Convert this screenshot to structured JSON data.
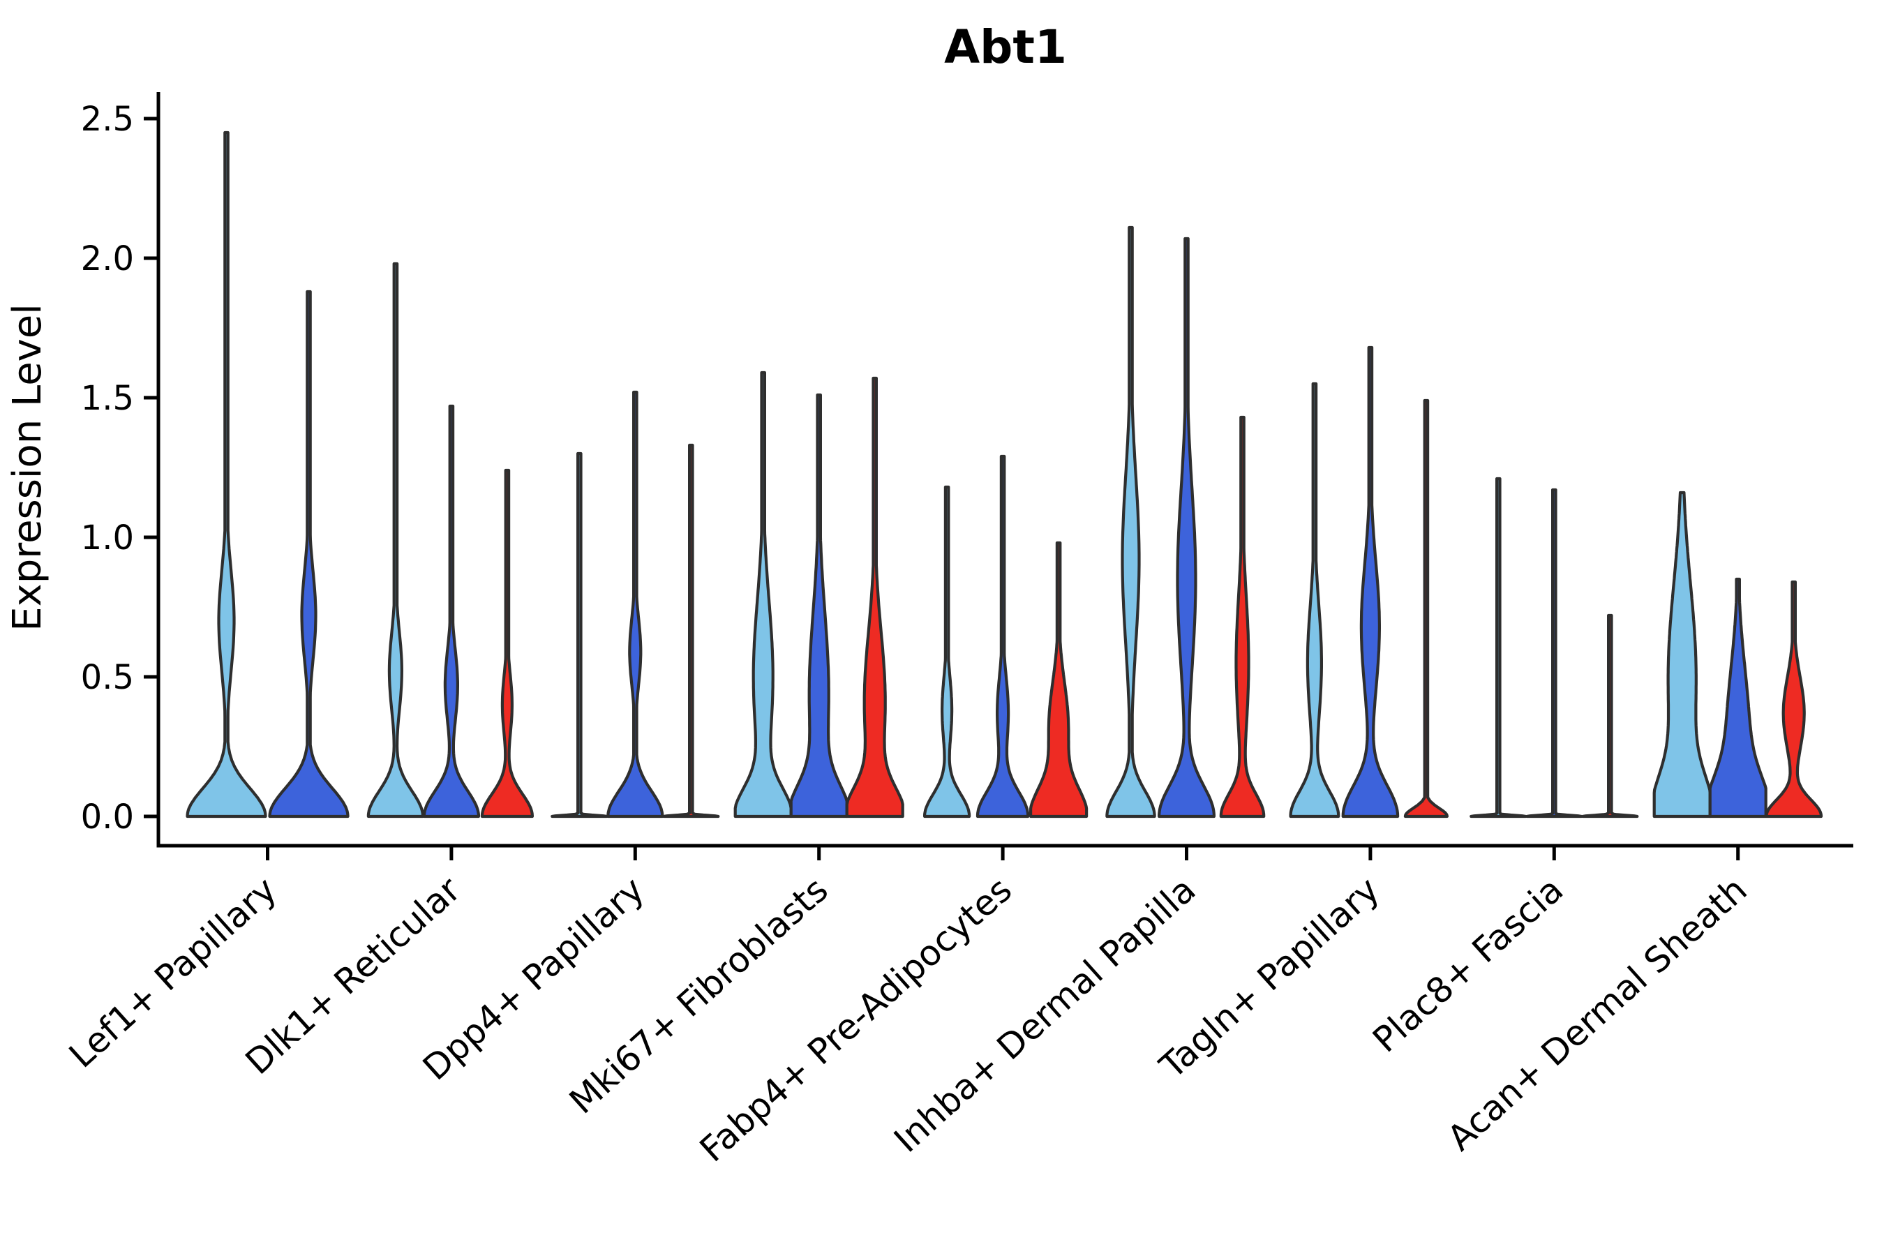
{
  "title": "Abt1",
  "chart_data": {
    "type": "violin",
    "title": "Abt1",
    "xlabel": "",
    "ylabel": "Expression Level",
    "ylim": [
      -0.11,
      2.6
    ],
    "grid": false,
    "legend": "none",
    "y_ticks": [
      "0.0",
      "0.5",
      "1.0",
      "1.5",
      "2.0",
      "2.5"
    ],
    "y_tick_values": [
      0,
      0.5,
      1.0,
      1.5,
      2.0,
      2.5
    ],
    "palette": [
      "#7fc4e8",
      "#3d63db",
      "#ee2b23"
    ],
    "outline_color": "#2e2e2e",
    "categories": [
      "Lef1+ Papillary",
      "Dlk1+ Reticular",
      "Dpp4+ Papillary",
      "Mki67+ Fibroblasts",
      "Fabp4+ Pre-Adipocytes",
      "Inhba+ Dermal Papilla",
      "Tagln+ Papillary",
      "Plac8+ Fascia",
      "Acan+ Dermal Sheath"
    ],
    "groups": [
      {
        "category": "Lef1+ Papillary",
        "violins": [
          {
            "series": 0,
            "max": 2.45,
            "mode": 0.7,
            "bulge_hw": 11,
            "bulge_s": 0.18,
            "base_hw": 56,
            "base_s": 0.1
          },
          {
            "series": 1,
            "max": 1.88,
            "mode": 0.72,
            "bulge_hw": 10,
            "bulge_s": 0.16,
            "base_hw": 56,
            "base_s": 0.1
          }
        ]
      },
      {
        "category": "Dlk1+ Reticular",
        "violins": [
          {
            "series": 0,
            "max": 1.98,
            "mode": 0.52,
            "bulge_hw": 9,
            "bulge_s": 0.14,
            "base_hw": 39,
            "base_s": 0.09
          },
          {
            "series": 1,
            "max": 1.47,
            "mode": 0.47,
            "bulge_hw": 9,
            "bulge_s": 0.13,
            "base_hw": 39,
            "base_s": 0.09
          },
          {
            "series": 2,
            "max": 1.24,
            "mode": 0.4,
            "bulge_hw": 7,
            "bulge_s": 0.11,
            "base_hw": 36,
            "base_s": 0.08
          }
        ]
      },
      {
        "category": "Dpp4+ Papillary",
        "violins": [
          {
            "series": 0,
            "max": 1.3,
            "mode": null,
            "bulge_hw": 0,
            "bulge_s": 0,
            "base_hw": 39,
            "base_s": 0.004
          },
          {
            "series": 1,
            "max": 1.52,
            "mode": 0.59,
            "bulge_hw": 8,
            "bulge_s": 0.12,
            "base_hw": 39,
            "base_s": 0.09
          },
          {
            "series": 2,
            "max": 1.33,
            "mode": null,
            "bulge_hw": 0,
            "bulge_s": 0,
            "base_hw": 39,
            "base_s": 0.004
          }
        ]
      },
      {
        "category": "Mki67+ Fibroblasts",
        "violins": [
          {
            "series": 0,
            "max": 1.59,
            "mode": 0.5,
            "bulge_hw": 14,
            "bulge_s": 0.27,
            "base_hw": 39,
            "base_s": 0.1
          },
          {
            "series": 1,
            "max": 1.51,
            "mode": 0.44,
            "bulge_hw": 14,
            "bulge_s": 0.29,
            "base_hw": 39,
            "base_s": 0.11
          },
          {
            "series": 2,
            "max": 1.57,
            "mode": 0.41,
            "bulge_hw": 15,
            "bulge_s": 0.25,
            "base_hw": 39,
            "base_s": 0.1
          }
        ]
      },
      {
        "category": "Fabp4+ Pre-Adipocytes",
        "violins": [
          {
            "series": 0,
            "max": 1.18,
            "mode": 0.38,
            "bulge_hw": 7,
            "bulge_s": 0.12,
            "base_hw": 32,
            "base_s": 0.08
          },
          {
            "series": 1,
            "max": 1.29,
            "mode": 0.37,
            "bulge_hw": 8,
            "bulge_s": 0.13,
            "base_hw": 36,
            "base_s": 0.09
          },
          {
            "series": 2,
            "max": 0.98,
            "mode": 0.32,
            "bulge_hw": 14,
            "bulge_s": 0.16,
            "base_hw": 39,
            "base_s": 0.1
          }
        ]
      },
      {
        "category": "Inhba+ Dermal Papilla",
        "violins": [
          {
            "series": 0,
            "max": 2.11,
            "mode": 0.92,
            "bulge_hw": 12,
            "bulge_s": 0.3,
            "base_hw": 34,
            "base_s": 0.09
          },
          {
            "series": 1,
            "max": 2.07,
            "mode": 0.85,
            "bulge_hw": 13,
            "bulge_s": 0.32,
            "base_hw": 39,
            "base_s": 0.11
          },
          {
            "series": 2,
            "max": 1.43,
            "mode": 0.55,
            "bulge_hw": 9,
            "bulge_s": 0.24,
            "base_hw": 30,
            "base_s": 0.08
          }
        ]
      },
      {
        "category": "Tagln+ Papillary",
        "violins": [
          {
            "series": 0,
            "max": 1.55,
            "mode": 0.55,
            "bulge_hw": 10,
            "bulge_s": 0.21,
            "base_hw": 34,
            "base_s": 0.09
          },
          {
            "series": 1,
            "max": 1.68,
            "mode": 0.68,
            "bulge_hw": 13,
            "bulge_s": 0.23,
            "base_hw": 39,
            "base_s": 0.11
          },
          {
            "series": 2,
            "max": 1.49,
            "mode": null,
            "bulge_hw": 0,
            "bulge_s": 0,
            "base_hw": 30,
            "base_s": 0.03
          }
        ]
      },
      {
        "category": "Plac8+ Fascia",
        "violins": [
          {
            "series": 0,
            "max": 1.21,
            "mode": null,
            "bulge_hw": 0,
            "bulge_s": 0,
            "base_hw": 39,
            "base_s": 0.004
          },
          {
            "series": 1,
            "max": 1.17,
            "mode": null,
            "bulge_hw": 0,
            "bulge_s": 0,
            "base_hw": 39,
            "base_s": 0.004
          },
          {
            "series": 2,
            "max": 0.72,
            "mode": null,
            "bulge_hw": 0,
            "bulge_s": 0,
            "base_hw": 39,
            "base_s": 0.004
          }
        ]
      },
      {
        "category": "Acan+ Dermal Sheath",
        "violins": [
          {
            "series": 0,
            "max": 1.16,
            "mode": 0.5,
            "bulge_hw": 20,
            "bulge_s": 0.33,
            "base_hw": 38,
            "base_s": 0.14
          },
          {
            "series": 1,
            "max": 0.85,
            "mode": 0.3,
            "bulge_hw": 16,
            "bulge_s": 0.24,
            "base_hw": 39,
            "base_s": 0.13
          },
          {
            "series": 2,
            "max": 0.84,
            "mode": 0.37,
            "bulge_hw": 15,
            "bulge_s": 0.13,
            "base_hw": 39,
            "base_s": 0.06
          }
        ]
      }
    ]
  }
}
